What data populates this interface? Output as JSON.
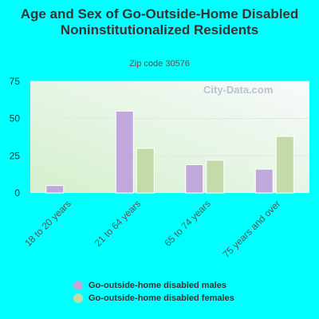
{
  "chart_data": {
    "type": "bar",
    "title": "Age and Sex of Go-Outside-Home Disabled Noninstitutionalized Residents",
    "subtitle": "Zip code 30576",
    "categories": [
      "18 to 20 years",
      "21 to 64 years",
      "65 to 74 years",
      "75 years and over"
    ],
    "series": [
      {
        "name": "Go-outside-home disabled males",
        "values": [
          5,
          55,
          19,
          16
        ],
        "color": "#c0a8dc"
      },
      {
        "name": "Go-outside-home disabled females",
        "values": [
          0,
          30,
          22,
          38
        ],
        "color": "#c4daa8"
      }
    ],
    "yticks": [
      0,
      25,
      50,
      75
    ],
    "ylim": [
      0,
      75
    ],
    "grid": true,
    "legend_position": "bottom",
    "watermark": "City-Data.com"
  }
}
